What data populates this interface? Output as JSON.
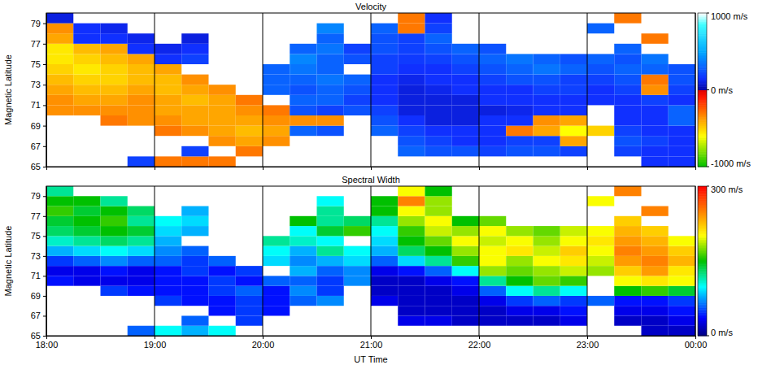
{
  "chart_data": [
    {
      "type": "heatmap",
      "title": "Velocity",
      "y_label": "Magnetic Latitude",
      "x": [
        18,
        18.25,
        18.5,
        18.75,
        19,
        19.25,
        19.5,
        19.75,
        20,
        20.25,
        20.5,
        20.75,
        21,
        21.25,
        21.5,
        21.75,
        22,
        22.25,
        22.5,
        22.75,
        23,
        23.25,
        23.5,
        23.75
      ],
      "y": [
        65,
        66,
        67,
        68,
        69,
        70,
        71,
        72,
        73,
        74,
        75,
        76,
        77,
        78,
        79
      ],
      "values": [
        [
          null,
          null,
          null,
          200,
          -300,
          -300,
          -300,
          null,
          null,
          null,
          null,
          null,
          null,
          null,
          null,
          null,
          null,
          null,
          null,
          null,
          null,
          null,
          150,
          150
        ],
        [
          null,
          null,
          null,
          null,
          null,
          200,
          null,
          -300,
          null,
          null,
          null,
          null,
          null,
          300,
          250,
          250,
          200,
          250,
          250,
          200,
          null,
          200,
          150,
          150
        ],
        [
          null,
          null,
          null,
          null,
          null,
          null,
          -350,
          -400,
          -350,
          null,
          null,
          null,
          null,
          250,
          200,
          150,
          150,
          200,
          200,
          -400,
          null,
          250,
          200,
          150
        ],
        [
          null,
          null,
          null,
          null,
          -300,
          -350,
          -400,
          -450,
          -400,
          300,
          250,
          null,
          300,
          200,
          150,
          150,
          150,
          -300,
          -400,
          -600,
          -500,
          200,
          150,
          150
        ],
        [
          null,
          null,
          -300,
          -350,
          -350,
          -400,
          -400,
          -400,
          -350,
          -350,
          -350,
          null,
          250,
          150,
          100,
          100,
          150,
          150,
          -350,
          -400,
          null,
          150,
          150,
          300
        ],
        [
          -350,
          -350,
          -350,
          -350,
          -400,
          -400,
          -400,
          -350,
          -300,
          250,
          200,
          250,
          200,
          100,
          100,
          100,
          100,
          120,
          150,
          150,
          null,
          150,
          150,
          300
        ],
        [
          -350,
          -400,
          -400,
          -350,
          -400,
          -450,
          -400,
          -300,
          null,
          300,
          300,
          200,
          150,
          100,
          100,
          100,
          150,
          150,
          150,
          150,
          150,
          150,
          200,
          150
        ],
        [
          -400,
          -450,
          -450,
          -400,
          -450,
          -400,
          -350,
          null,
          300,
          250,
          300,
          250,
          150,
          100,
          120,
          150,
          150,
          150,
          200,
          200,
          150,
          200,
          -350,
          200
        ],
        [
          -450,
          -500,
          -500,
          -450,
          -450,
          -350,
          null,
          null,
          300,
          300,
          350,
          300,
          150,
          120,
          150,
          150,
          200,
          250,
          250,
          200,
          200,
          250,
          -300,
          250
        ],
        [
          -500,
          -550,
          -500,
          -450,
          -400,
          null,
          null,
          null,
          300,
          350,
          300,
          null,
          200,
          150,
          150,
          200,
          250,
          300,
          350,
          300,
          250,
          300,
          300,
          250
        ],
        [
          -550,
          -500,
          -450,
          -400,
          150,
          200,
          null,
          null,
          null,
          400,
          300,
          250,
          200,
          180,
          200,
          250,
          300,
          350,
          300,
          250,
          300,
          250,
          350,
          null
        ],
        [
          -550,
          -450,
          -400,
          150,
          120,
          150,
          null,
          null,
          null,
          300,
          350,
          200,
          250,
          200,
          250,
          300,
          250,
          null,
          null,
          null,
          null,
          300,
          null,
          null
        ],
        [
          -400,
          150,
          150,
          120,
          null,
          100,
          null,
          null,
          null,
          null,
          300,
          null,
          250,
          200,
          300,
          null,
          null,
          null,
          null,
          null,
          null,
          null,
          -300,
          null
        ],
        [
          -350,
          150,
          120,
          null,
          null,
          null,
          null,
          null,
          null,
          null,
          400,
          null,
          300,
          -300,
          200,
          null,
          null,
          null,
          null,
          null,
          300,
          null,
          null,
          null
        ],
        [
          100,
          null,
          null,
          null,
          null,
          null,
          null,
          null,
          null,
          null,
          null,
          null,
          null,
          -300,
          150,
          null,
          null,
          null,
          null,
          null,
          null,
          -300,
          null,
          null
        ]
      ],
      "xlim": [
        18,
        24
      ],
      "ylim": [
        65,
        80
      ],
      "xticks": [
        {
          "value": 18,
          "label": "18:00"
        },
        {
          "value": 19,
          "label": "19:00"
        },
        {
          "value": 20,
          "label": "20:00"
        },
        {
          "value": 21,
          "label": "21:00"
        },
        {
          "value": 22,
          "label": "22:00"
        },
        {
          "value": 23,
          "label": "23:00"
        },
        {
          "value": 24,
          "label": "00:00"
        }
      ],
      "yticks": [
        65,
        67,
        69,
        71,
        73,
        75,
        77,
        79
      ],
      "grid": true,
      "tick_labels": "y",
      "colorbar": {
        "range": [
          -1000,
          1000
        ],
        "ticks": [
          {
            "value": 1000,
            "label": "1000 m/s"
          },
          {
            "value": 0,
            "label": "0 m/s"
          },
          {
            "value": -1000,
            "label": "-1000 m/s"
          }
        ]
      }
    },
    {
      "type": "heatmap",
      "title": "Spectral Width",
      "y_label": "Magnetic Latitude",
      "x_label": "UT Time",
      "x": [
        18,
        18.25,
        18.5,
        18.75,
        19,
        19.25,
        19.5,
        19.75,
        20,
        20.25,
        20.5,
        20.75,
        21,
        21.25,
        21.5,
        21.75,
        22,
        22.25,
        22.5,
        22.75,
        23,
        23.25,
        23.5,
        23.75
      ],
      "y": [
        65,
        66,
        67,
        68,
        69,
        70,
        71,
        72,
        73,
        74,
        75,
        76,
        77,
        78,
        79
      ],
      "values": [
        [
          null,
          null,
          null,
          60,
          100,
          80,
          100,
          null,
          null,
          null,
          null,
          null,
          null,
          null,
          null,
          null,
          null,
          null,
          null,
          null,
          null,
          null,
          20,
          20
        ],
        [
          null,
          null,
          null,
          null,
          null,
          60,
          null,
          50,
          null,
          null,
          null,
          null,
          null,
          30,
          30,
          20,
          20,
          20,
          20,
          30,
          null,
          20,
          20,
          30
        ],
        [
          null,
          null,
          null,
          null,
          null,
          null,
          40,
          50,
          40,
          null,
          null,
          null,
          null,
          20,
          20,
          20,
          20,
          30,
          30,
          40,
          null,
          30,
          30,
          40
        ],
        [
          null,
          null,
          null,
          null,
          50,
          40,
          40,
          50,
          40,
          60,
          70,
          null,
          30,
          20,
          20,
          20,
          30,
          50,
          60,
          50,
          60,
          40,
          40,
          50
        ],
        [
          null,
          null,
          50,
          40,
          40,
          40,
          50,
          60,
          40,
          70,
          50,
          null,
          20,
          20,
          20,
          30,
          60,
          100,
          120,
          100,
          null,
          150,
          160,
          140
        ],
        [
          40,
          30,
          30,
          30,
          40,
          40,
          50,
          40,
          60,
          60,
          50,
          70,
          20,
          20,
          30,
          40,
          120,
          150,
          170,
          160,
          null,
          200,
          210,
          200
        ],
        [
          30,
          30,
          40,
          30,
          40,
          50,
          40,
          50,
          null,
          80,
          60,
          70,
          30,
          40,
          60,
          100,
          180,
          170,
          180,
          190,
          180,
          220,
          240,
          210
        ],
        [
          50,
          60,
          70,
          60,
          60,
          50,
          60,
          null,
          90,
          70,
          80,
          90,
          60,
          90,
          120,
          160,
          200,
          180,
          200,
          210,
          190,
          240,
          250,
          230
        ],
        [
          80,
          90,
          100,
          90,
          70,
          60,
          null,
          null,
          100,
          80,
          120,
          100,
          80,
          130,
          150,
          180,
          200,
          210,
          190,
          220,
          200,
          250,
          240,
          220
        ],
        [
          110,
          120,
          130,
          120,
          80,
          null,
          null,
          null,
          120,
          110,
          100,
          null,
          90,
          150,
          170,
          200,
          190,
          200,
          180,
          200,
          210,
          240,
          230,
          200
        ],
        [
          130,
          140,
          150,
          140,
          90,
          80,
          null,
          null,
          null,
          100,
          140,
          160,
          100,
          160,
          190,
          180,
          200,
          180,
          170,
          190,
          200,
          230,
          220,
          null
        ],
        [
          140,
          150,
          160,
          120,
          100,
          90,
          null,
          null,
          null,
          150,
          120,
          130,
          120,
          180,
          200,
          150,
          170,
          null,
          null,
          null,
          null,
          220,
          null,
          null
        ],
        [
          160,
          140,
          150,
          130,
          null,
          80,
          null,
          null,
          null,
          null,
          120,
          null,
          150,
          200,
          180,
          null,
          null,
          null,
          null,
          null,
          null,
          null,
          250,
          null
        ],
        [
          150,
          150,
          120,
          null,
          null,
          null,
          null,
          null,
          null,
          null,
          100,
          null,
          150,
          250,
          180,
          null,
          null,
          null,
          null,
          null,
          200,
          null,
          null,
          null
        ],
        [
          120,
          null,
          null,
          null,
          null,
          null,
          null,
          null,
          null,
          null,
          null,
          null,
          null,
          200,
          150,
          null,
          null,
          null,
          null,
          null,
          null,
          250,
          null,
          null
        ]
      ],
      "xlim": [
        18,
        24
      ],
      "ylim": [
        65,
        80
      ],
      "xticks": [
        {
          "value": 18,
          "label": "18:00"
        },
        {
          "value": 19,
          "label": "19:00"
        },
        {
          "value": 20,
          "label": "20:00"
        },
        {
          "value": 21,
          "label": "21:00"
        },
        {
          "value": 22,
          "label": "22:00"
        },
        {
          "value": 23,
          "label": "23:00"
        },
        {
          "value": 24,
          "label": "00:00"
        }
      ],
      "yticks": [
        65,
        67,
        69,
        71,
        73,
        75,
        77,
        79
      ],
      "grid": true,
      "colorbar": {
        "range": [
          0,
          300
        ],
        "ticks": [
          {
            "value": 300,
            "label": "300 m/s"
          },
          {
            "value": 0,
            "label": "0 m/s"
          }
        ]
      }
    }
  ]
}
